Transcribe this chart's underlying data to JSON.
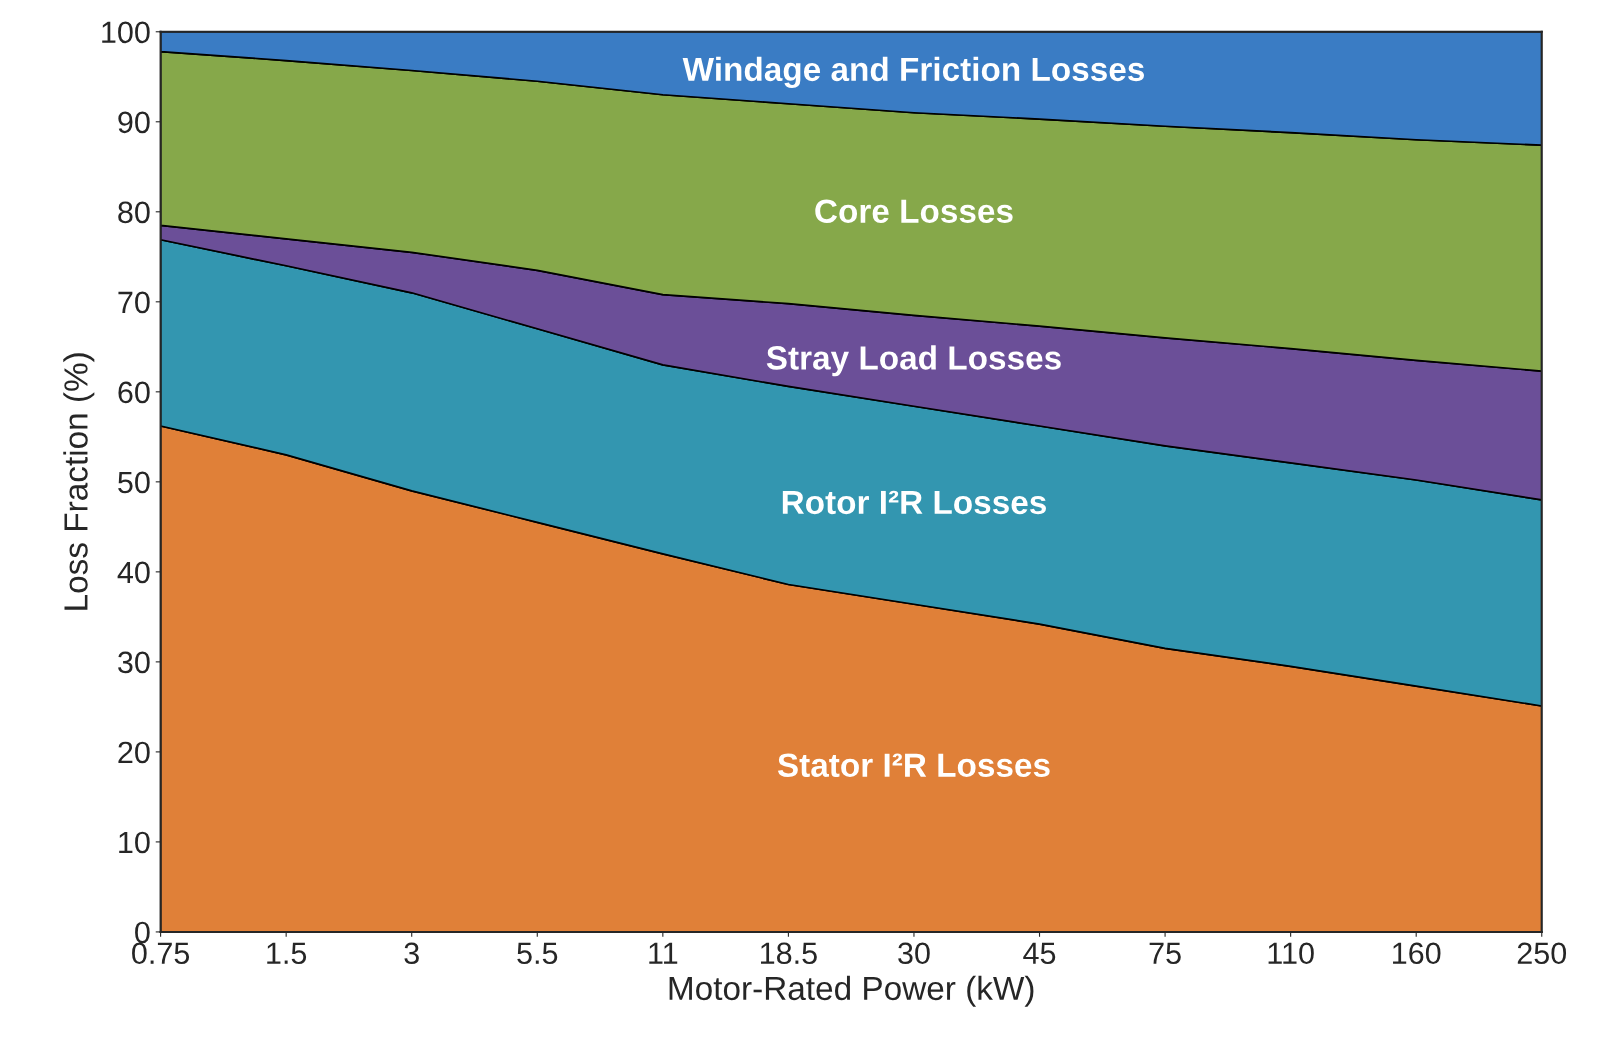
{
  "chart_data": {
    "type": "area",
    "stacked": true,
    "xlabel": "Motor-Rated Power (kW)",
    "ylabel": "Loss Fraction (%)",
    "categories": [
      "0.75",
      "1.5",
      "3",
      "5.5",
      "11",
      "18.5",
      "30",
      "45",
      "75",
      "110",
      "160",
      "250"
    ],
    "ylim": [
      0,
      100
    ],
    "yticks": [
      0,
      10,
      20,
      30,
      40,
      50,
      60,
      70,
      80,
      90,
      100
    ],
    "legend": false,
    "series": [
      {
        "name": "Stator I²R Losses",
        "color": "#e08038",
        "values": [
          56.2,
          53,
          49,
          45.5,
          42,
          38.6,
          36.4,
          34.2,
          31.5,
          29.5,
          27.3,
          25.1
        ]
      },
      {
        "name": "Rotor I²R Losses",
        "color": "#3396b0",
        "values": [
          20.7,
          21,
          22,
          21.5,
          21,
          22,
          22,
          22,
          22.5,
          22.6,
          22.9,
          22.9
        ]
      },
      {
        "name": "Stray Load Losses",
        "color": "#6b4f98",
        "values": [
          1.6,
          3,
          4.5,
          6.5,
          7.8,
          9.2,
          10.1,
          11.1,
          12,
          12.7,
          13.3,
          14.3
        ]
      },
      {
        "name": "Core Losses",
        "color": "#86a84a",
        "values": [
          19.3,
          19.8,
          20.2,
          21,
          22.2,
          22.2,
          22.5,
          23,
          23.5,
          24,
          24.5,
          25.1
        ]
      },
      {
        "name": "Windage and Friction Losses",
        "color": "#3a7cc4",
        "values": [
          2.2,
          3.2,
          4.3,
          5.5,
          7,
          8,
          9,
          9.7,
          10.5,
          11.2,
          12,
          12.6
        ]
      }
    ]
  }
}
